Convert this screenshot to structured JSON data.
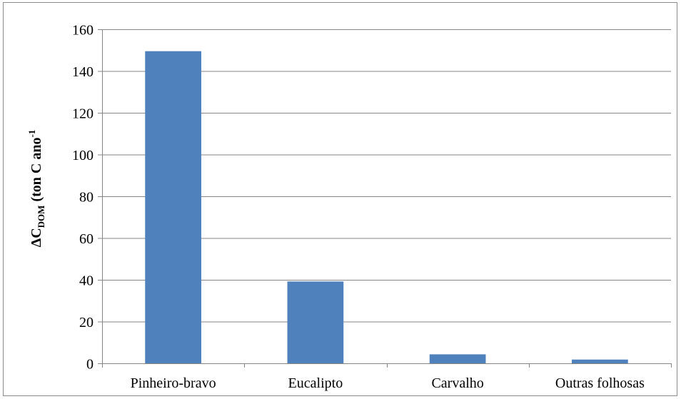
{
  "chart_data": {
    "type": "bar",
    "categories": [
      "Pinheiro-bravo",
      "Eucalipto",
      "Carvalho",
      "Outras folhosas"
    ],
    "series": [
      {
        "values": [
          149.5,
          39.2,
          4.3,
          1.8
        ],
        "color": "#4f81bd"
      }
    ],
    "ylabel": {
      "base": "ΔC",
      "subscript": "DOM",
      "middle": " (ton C ano",
      "superscript": "-1"
    },
    "ylim": [
      0,
      160
    ],
    "yticks": [
      0,
      20,
      40,
      60,
      80,
      100,
      120,
      140,
      160
    ],
    "ytick_labels": [
      "0",
      "20",
      "40",
      "60",
      "80",
      "100",
      "120",
      "140",
      "160"
    ],
    "grid": true,
    "legend": "none",
    "colors": {
      "bar": "#4f81bd",
      "grid": "#868686",
      "axis": "#868686",
      "frame": "#8c8c8c"
    }
  }
}
